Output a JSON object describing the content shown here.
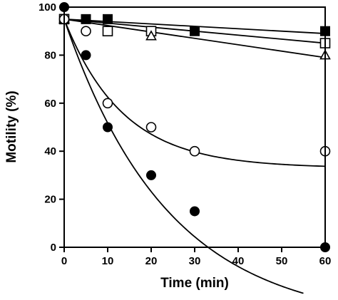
{
  "chart_data": {
    "type": "scatter",
    "title": "",
    "xlabel": "Time (min)",
    "ylabel": "Motility (%)",
    "xlim": [
      0,
      60
    ],
    "ylim": [
      0,
      100
    ],
    "xticks": [
      0,
      10,
      20,
      30,
      40,
      50,
      60
    ],
    "yticks": [
      0,
      20,
      40,
      60,
      80,
      100
    ],
    "grid": false,
    "legend": "none",
    "series": [
      {
        "marker": "filled-square",
        "x": [
          0,
          5,
          10,
          20,
          30,
          60
        ],
        "y": [
          95,
          95,
          95,
          90,
          90,
          90
        ],
        "fit": {
          "kind": "line",
          "start": 95,
          "end": 89
        }
      },
      {
        "marker": "open-square",
        "x": [
          0,
          10,
          20,
          60
        ],
        "y": [
          95,
          90,
          90,
          85
        ],
        "fit": {
          "kind": "line",
          "start": 95,
          "end": 85
        }
      },
      {
        "marker": "open-triangle",
        "x": [
          0,
          20,
          60
        ],
        "y": [
          95,
          88,
          80
        ],
        "fit": {
          "kind": "line",
          "start": 95,
          "end": 79
        }
      },
      {
        "marker": "open-circle",
        "x": [
          0,
          5,
          10,
          20,
          30,
          60
        ],
        "y": [
          95,
          90,
          60,
          50,
          40,
          40
        ],
        "fit": {
          "kind": "exp",
          "plateau": 33,
          "start": 95,
          "tau": 13.5,
          "xmax": 60
        }
      },
      {
        "marker": "filled-circle",
        "x": [
          0,
          5,
          10,
          20,
          30,
          60
        ],
        "y": [
          100,
          80,
          50,
          30,
          15,
          0
        ],
        "fit": {
          "kind": "exp",
          "plateau": -32,
          "start": 95,
          "tau": 24,
          "xmax": 55
        }
      }
    ]
  }
}
